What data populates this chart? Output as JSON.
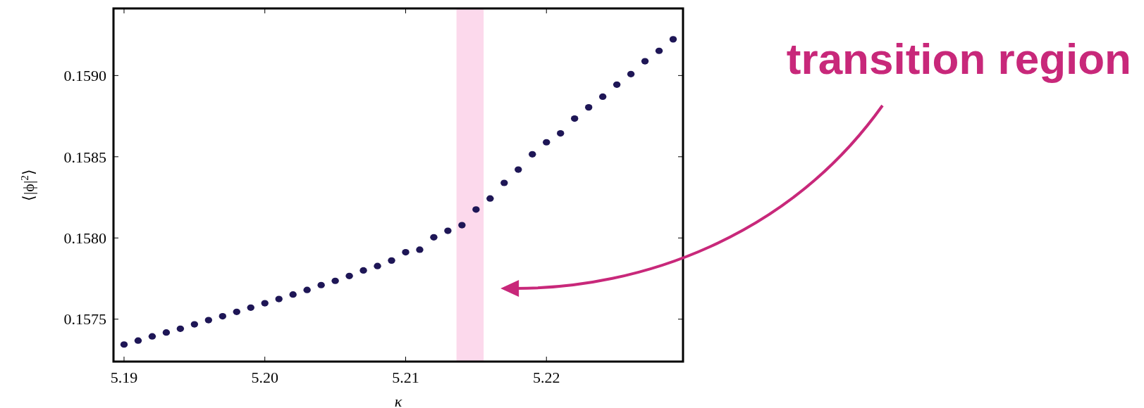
{
  "chart_data": {
    "type": "scatter",
    "xlabel": "κ",
    "ylabel": "⟨|ϕ|$^{2}$⟩",
    "x": [
      5.19,
      5.191,
      5.192,
      5.193,
      5.194,
      5.195,
      5.196,
      5.197,
      5.198,
      5.199,
      5.2,
      5.201,
      5.202,
      5.203,
      5.204,
      5.205,
      5.206,
      5.207,
      5.208,
      5.209,
      5.21,
      5.211,
      5.212,
      5.213,
      5.214,
      5.215,
      5.216,
      5.217,
      5.218,
      5.219,
      5.22,
      5.221,
      5.222,
      5.223,
      5.224,
      5.225,
      5.226,
      5.227,
      5.228,
      5.229
    ],
    "series": [
      {
        "color": "#1e1656",
        "values": [
          0.157344,
          0.157368,
          0.157394,
          0.157418,
          0.157441,
          0.157468,
          0.157494,
          0.157518,
          0.157545,
          0.157571,
          0.157598,
          0.157624,
          0.157652,
          0.15768,
          0.15771,
          0.157736,
          0.157766,
          0.1578,
          0.157827,
          0.157861,
          0.157912,
          0.157928,
          0.158004,
          0.158044,
          0.158079,
          0.158175,
          0.158243,
          0.158339,
          0.158421,
          0.158515,
          0.158589,
          0.158644,
          0.158735,
          0.158804,
          0.15887,
          0.158944,
          0.159009,
          0.159088,
          0.159152,
          0.159223
        ]
      }
    ],
    "xlim": [
      5.18925,
      5.2297
    ],
    "ylim": [
      0.157239,
      0.159413
    ],
    "xticks": [
      {
        "value": 5.19,
        "label": "5.19"
      },
      {
        "value": 5.2,
        "label": "5.20"
      },
      {
        "value": 5.21,
        "label": "5.21"
      },
      {
        "value": 5.22,
        "label": "5.22"
      }
    ],
    "yticks": [
      {
        "value": 0.1575,
        "label": "0.1575"
      },
      {
        "value": 0.158,
        "label": "0.1580"
      },
      {
        "value": 0.1585,
        "label": "0.1585"
      },
      {
        "value": 0.159,
        "label": "0.1590"
      }
    ],
    "bands": [
      {
        "axis": "x",
        "from": 5.21361,
        "to": 5.21554,
        "color": "#fcd9ec"
      }
    ],
    "annotations": [
      "transition region"
    ],
    "marker": "circle",
    "grid": false
  }
}
